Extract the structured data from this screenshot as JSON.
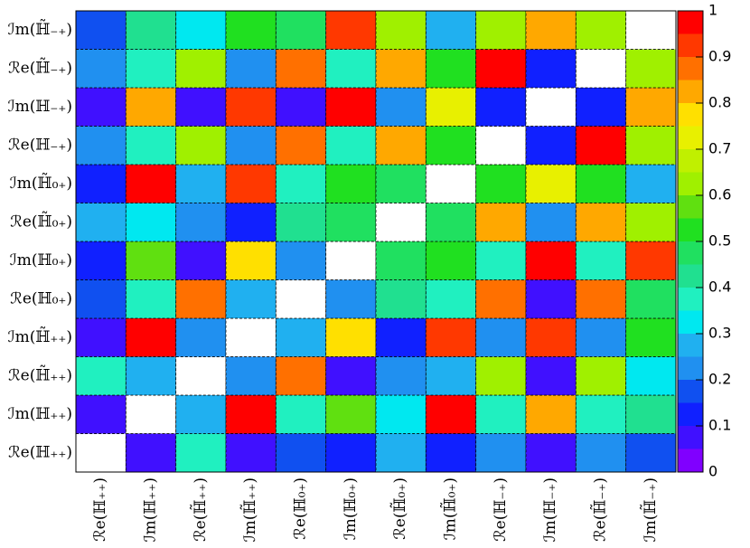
{
  "chart_data": {
    "type": "heatmap",
    "categories": [
      "ℛe(ℍ₊₊)",
      "ℐm(ℍ₊₊)",
      "ℛe(ℍ̃₊₊)",
      "ℐm(ℍ̃₊₊)",
      "ℛe(ℍ₀₊)",
      "ℐm(ℍ₀₊)",
      "ℛe(ℍ̃₀₊)",
      "ℐm(ℍ̃₀₊)",
      "ℛe(ℍ₋₊)",
      "ℐm(ℍ₋₊)",
      "ℛe(ℍ̃₋₊)",
      "ℐm(ℍ̃₋₊)"
    ],
    "z": [
      [
        null,
        0.07,
        0.38,
        0.05,
        0.17,
        0.12,
        0.27,
        0.13,
        0.22,
        0.08,
        0.22,
        0.17
      ],
      [
        0.07,
        null,
        0.27,
        0.97,
        0.38,
        0.58,
        0.33,
        0.97,
        0.38,
        0.83,
        0.38,
        0.42
      ],
      [
        0.38,
        0.27,
        null,
        0.22,
        0.87,
        0.08,
        0.22,
        0.28,
        0.62,
        0.05,
        0.62,
        0.33
      ],
      [
        0.05,
        0.97,
        0.22,
        null,
        0.28,
        0.77,
        0.12,
        0.92,
        0.22,
        0.92,
        0.22,
        0.52
      ],
      [
        0.17,
        0.38,
        0.87,
        0.28,
        null,
        0.22,
        0.43,
        0.38,
        0.87,
        0.05,
        0.87,
        0.47
      ],
      [
        0.12,
        0.58,
        0.08,
        0.77,
        0.22,
        null,
        0.47,
        0.52,
        0.38,
        0.97,
        0.38,
        0.93
      ],
      [
        0.27,
        0.33,
        0.22,
        0.12,
        0.43,
        0.47,
        null,
        0.47,
        0.83,
        0.22,
        0.83,
        0.62
      ],
      [
        0.13,
        0.97,
        0.28,
        0.92,
        0.38,
        0.52,
        0.47,
        null,
        0.52,
        0.72,
        0.52,
        0.27
      ],
      [
        0.22,
        0.38,
        0.62,
        0.22,
        0.87,
        0.38,
        0.83,
        0.52,
        null,
        0.13,
        0.97,
        0.62
      ],
      [
        0.08,
        0.83,
        0.05,
        0.92,
        0.05,
        0.97,
        0.22,
        0.72,
        0.13,
        null,
        0.13,
        0.83
      ],
      [
        0.22,
        0.38,
        0.62,
        0.22,
        0.87,
        0.38,
        0.83,
        0.52,
        0.97,
        0.13,
        null,
        0.62
      ],
      [
        0.17,
        0.42,
        0.33,
        0.52,
        0.47,
        0.93,
        0.62,
        0.27,
        0.62,
        0.83,
        0.62,
        null
      ]
    ],
    "zlim": [
      0,
      1
    ],
    "zticks": [
      0,
      0.1,
      0.2,
      0.3,
      0.4,
      0.5,
      0.6,
      0.7,
      0.8,
      0.9,
      1
    ],
    "colors": [
      "#8000ff",
      "#4010ff",
      "#1020ff",
      "#1050f0",
      "#2090f0",
      "#20b0f0",
      "#00e8f0",
      "#20f0c0",
      "#20e090",
      "#20e060",
      "#20e020",
      "#60e010",
      "#a0f000",
      "#c0f000",
      "#e8f000",
      "#ffe000",
      "#ffa800",
      "#ff7000",
      "#ff3800",
      "#ff0000"
    ]
  }
}
